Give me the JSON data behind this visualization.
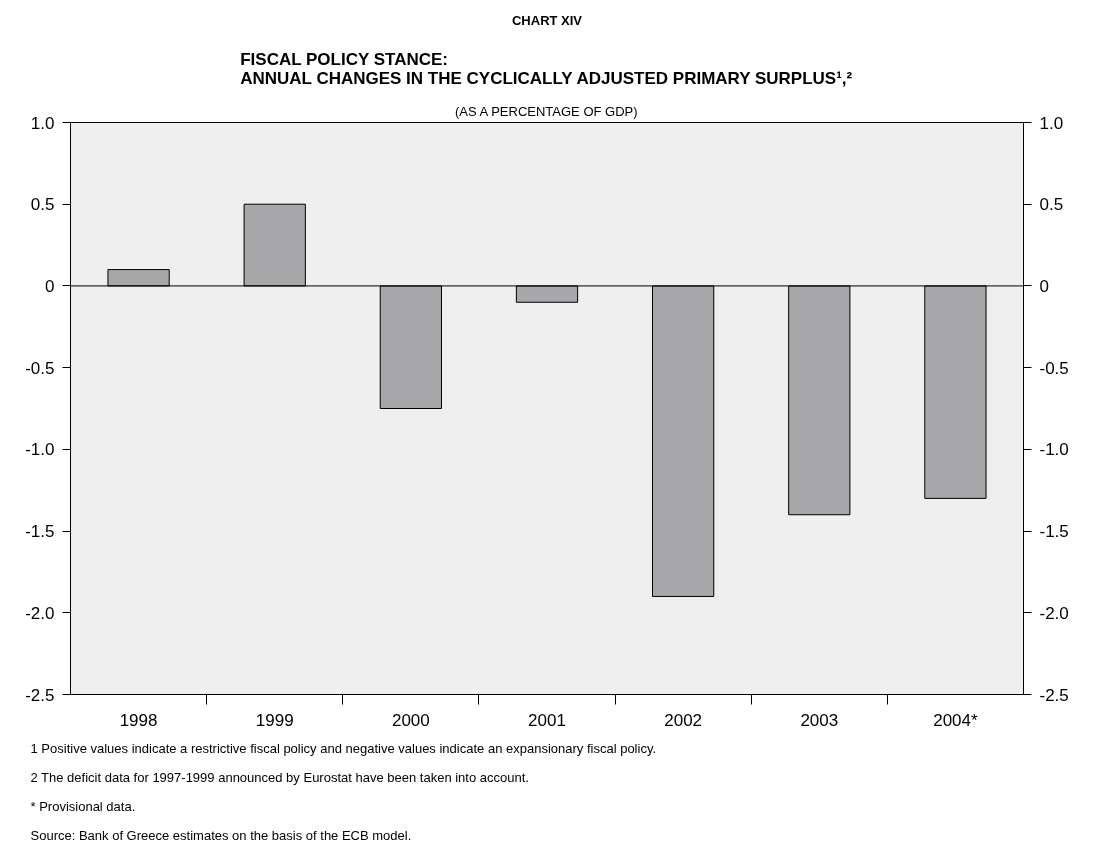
{
  "chart_data": {
    "type": "bar",
    "title": "CHART XIV",
    "subtitle": "FISCAL POLICY STANCE:\nANNUAL CHANGES IN THE CYCLICALLY ADJUSTED PRIMARY SURPLUS¹,²",
    "categories": [
      "1998",
      "1999",
      "2000",
      "2001",
      "2002",
      "2003",
      "2004*"
    ],
    "values": [
      0.1,
      0.5,
      -0.75,
      -0.1,
      -1.9,
      -1.4,
      -1.3
    ],
    "color": "#a7a7a9",
    "ylim": [
      -2.5,
      1.0
    ],
    "yticks": [
      {
        "value": 1.0,
        "label": "1.0"
      },
      {
        "value": 0.5,
        "label": "0.5"
      },
      0,
      {
        "value": -0.5,
        "label": "-0.5"
      },
      {
        "value": -1.0,
        "label": "-1.0"
      },
      {
        "value": -1.5,
        "label": "-1.5"
      },
      {
        "value": -2.0,
        "label": "-2.0"
      },
      {
        "value": -2.5,
        "label": "-2.5"
      }
    ],
    "y2lim": [
      -2.5,
      1.0
    ],
    "y2ticks": [
      {
        "value": 1.0,
        "label": "1.0"
      },
      {
        "value": 0.5,
        "label": "0.5"
      },
      0,
      {
        "value": -0.5,
        "label": "-0.5"
      },
      {
        "value": -1.0,
        "label": "-1.0"
      },
      {
        "value": -1.5,
        "label": "-1.5"
      },
      {
        "value": -2.0,
        "label": "-2.0"
      },
      {
        "value": -2.5,
        "label": "-2.5"
      }
    ],
    "ref_lines": [
      {
        "axis": "y",
        "value": 0,
        "label": null,
        "color": "#000000"
      }
    ],
    "grid": false,
    "legend": false,
    "annotations": [
      "(AS A PERCENTAGE OF GDP)",
      "1  Positive values indicate a restrictive fiscal policy and negative values indicate an expansionary fiscal policy.",
      "2  The deficit data for 1997-1999 announced by Eurostat have been taken into account.",
      "*  Provisional data.",
      "Source: Bank of Greece estimates on the basis of the ECB model."
    ]
  }
}
